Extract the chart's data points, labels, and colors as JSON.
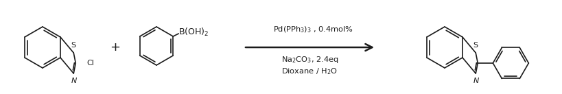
{
  "background_color": "#ffffff",
  "line_color": "#1a1a1a",
  "arrow_color": "#1a1a1a",
  "text_color": "#1a1a1a",
  "reaction_conditions_line1": "Pd(PPh$_3$)$_3$ , 0.4mol%",
  "reaction_conditions_line2": "Na$_2$CO$_3$, 2.4eq",
  "reaction_conditions_line3": "Dioxane / H$_2$O",
  "plus_sign": "+",
  "boronic_label": "B(OH)$_2$",
  "chloro_label": "Cl",
  "nitrogen_label": "N",
  "sulfur_label": "S",
  "sulfur_label2": "S",
  "nitrogen_label2": "N",
  "figsize": [
    8.2,
    1.37
  ],
  "dpi": 100
}
